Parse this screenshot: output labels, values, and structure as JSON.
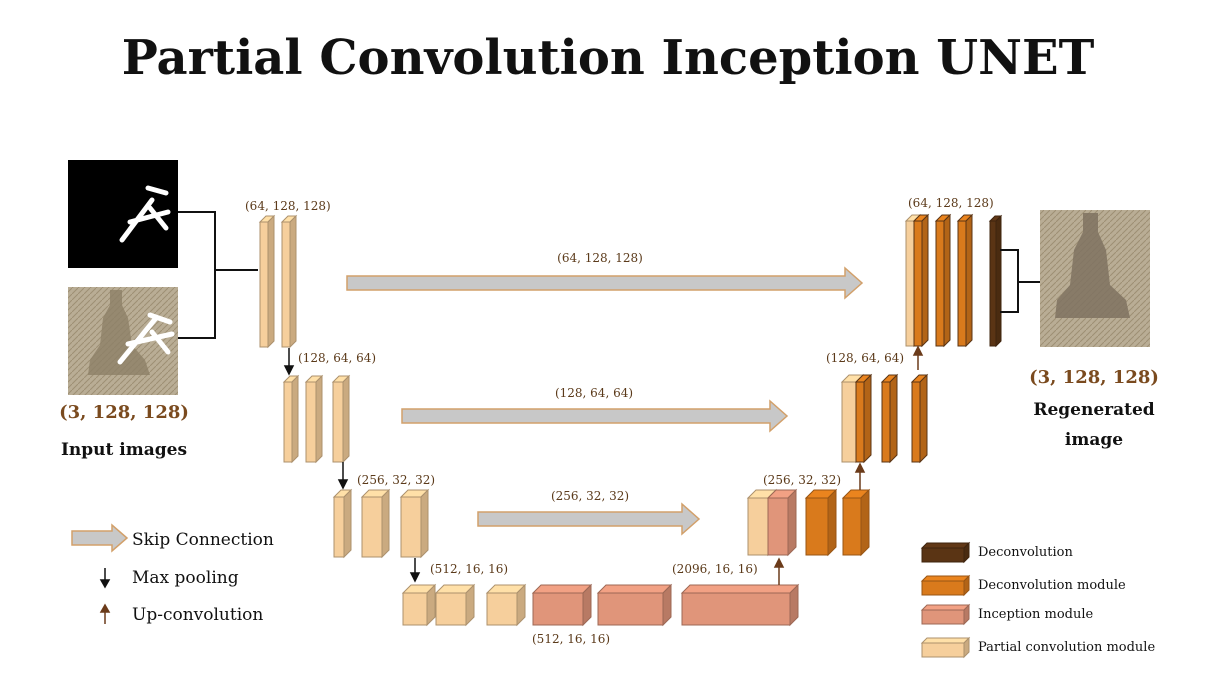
{
  "title": "Partial Convolution Inception UNET",
  "labels": {
    "input_shape": "(3, 128, 128)",
    "input_caption": "Input images",
    "output_shape": "(3, 128, 128)",
    "output_caption_1": "Regenerated",
    "output_caption_2": "image",
    "enc1": "(64, 128, 128)",
    "enc2": "(128, 64, 64)",
    "enc3": "(256, 32, 32)",
    "enc4": "(512, 16, 16)",
    "bottleneck": "(512, 16, 16)",
    "bridge": "(2096, 16, 16)",
    "dec3": "(256, 32, 32)",
    "dec2": "(128, 64, 64)",
    "dec1": "(64, 128, 128)",
    "skip1": "(64, 128, 128)",
    "skip2": "(128, 64, 64)",
    "skip3": "(256, 32, 32)"
  },
  "legend_left": {
    "skip": "Skip Connection",
    "maxpool": "Max pooling",
    "upconv": "Up-convolution"
  },
  "legend_right": {
    "deconv": "Deconvolution",
    "deconv_module": "Deconvolution module",
    "inception": "Inception module",
    "partial": "Partial convolution module"
  },
  "colors": {
    "partial": "#f6cf9c",
    "inception": "#e0957a",
    "deconv_module": "#d97a1c",
    "deconv": "#5a3414",
    "skip_arrow": "#c8c8c8",
    "label": "#5b3a1a"
  }
}
